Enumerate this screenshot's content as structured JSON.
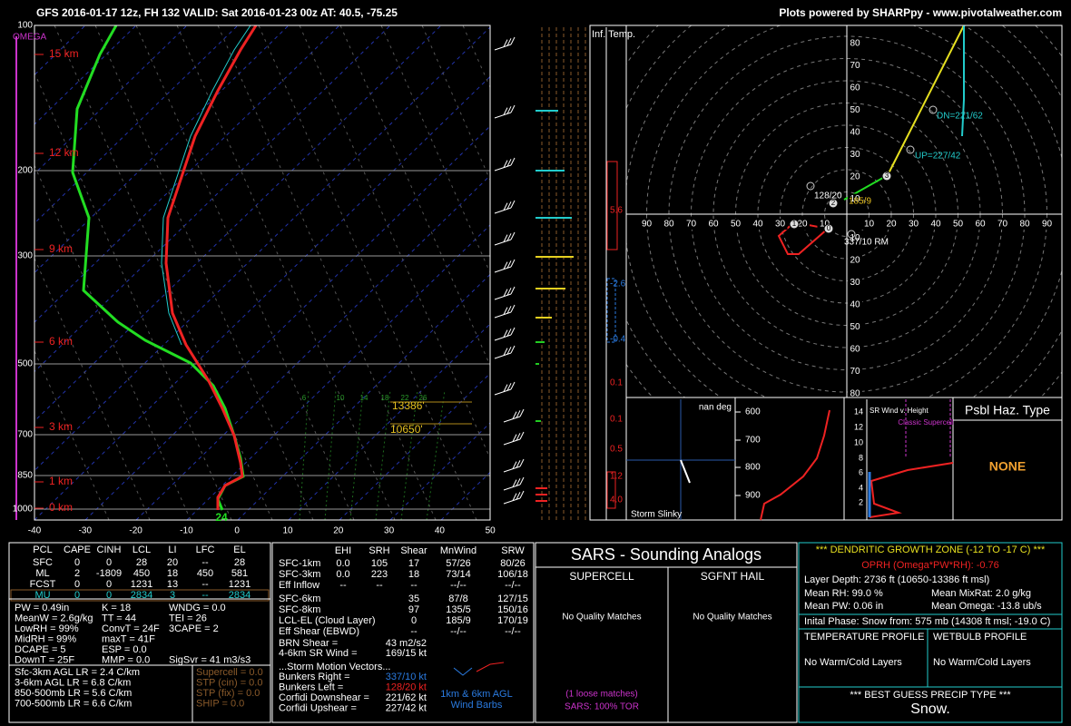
{
  "header": {
    "title": "GFS 2016-01-17 12z, FH 132   VALID: Sat 2016-01-23 00z   AT: 40.5, -75.25",
    "credit": "Plots powered by SHARPpy - www.pivotalweather.com"
  },
  "skewt": {
    "omega_label": "OMEGA",
    "pressure_labels": [
      "100",
      "200",
      "300",
      "500",
      "700",
      "850",
      "1000"
    ],
    "height_labels": [
      "15 km",
      "12 km",
      "9 km",
      "6 km",
      "3 km",
      "1 km",
      "0 km"
    ],
    "temp_labels": [
      "-40",
      "-30",
      "-20",
      "-10",
      "0",
      "10",
      "20",
      "30",
      "40",
      "50"
    ],
    "mixing_ratio_labels": [
      "6",
      "10",
      "14",
      "18",
      "22",
      "26"
    ],
    "dgz_top": "13386'",
    "dgz_bottom": "10650'",
    "sfc_label": "24"
  },
  "inferred_temp": {
    "label": "Inf. Temp.",
    "values": [
      "5.6",
      "-2.6",
      "-0.4",
      "0.1",
      "0.1",
      "0.5",
      "1.2",
      "4.0"
    ]
  },
  "hodograph": {
    "up_labels": [
      "80",
      "70",
      "60",
      "50",
      "40",
      "30",
      "20",
      "10"
    ],
    "down_labels": [
      "10",
      "20",
      "30",
      "40",
      "50",
      "60",
      "70",
      "80"
    ],
    "left_labels": [
      "90",
      "80",
      "70",
      "60",
      "50",
      "40",
      "30",
      "20",
      "10"
    ],
    "right_labels": [
      "10",
      "20",
      "30",
      "40",
      "50",
      "60",
      "70",
      "80",
      "90"
    ],
    "markers": [
      "1",
      "0",
      "2",
      "3"
    ],
    "dn": "DN=221/62",
    "up": "UP=227/42",
    "left_mover": "128/20",
    "cloud_layer": "185/9",
    "right_mover": "337/10 RM"
  },
  "slinky": {
    "title": "nan deg",
    "label": "Storm Slinky"
  },
  "theta_panel": {
    "labels": [
      "600",
      "700",
      "800",
      "900"
    ]
  },
  "sr_wind": {
    "title": "SR Wind v. Height",
    "annotation": "Classic Supercell",
    "labels": [
      "14",
      "12",
      "10",
      "8",
      "6",
      "4",
      "2"
    ]
  },
  "hazard": {
    "title": "Psbl Haz. Type",
    "value": "NONE"
  },
  "thermo": {
    "columns": [
      "PCL",
      "CAPE",
      "CINH",
      "LCL",
      "LI",
      "LFC",
      "EL"
    ],
    "rows": [
      [
        "SFC",
        "0",
        "0",
        "28",
        "20",
        "--",
        "28"
      ],
      [
        "ML",
        "2",
        "-1809",
        "450",
        "18",
        "450",
        "581"
      ],
      [
        "FCST",
        "0",
        "0",
        "1231",
        "13",
        "--",
        "1231"
      ],
      [
        "MU",
        "0",
        "0",
        "2834",
        "3",
        "--",
        "2834"
      ]
    ],
    "indices_a": [
      "PW = 0.49in",
      "MeanW = 2.6g/kg",
      "LowRH = 99%",
      "MidRH = 99%",
      "DCAPE = 5",
      "DownT = 25F"
    ],
    "indices_b": [
      "K = 18",
      "TT = 44",
      "ConvT = 24F",
      "maxT = 41F",
      "ESP = 0.0",
      "MMP = 0.0"
    ],
    "indices_c": [
      "WNDG = 0.0",
      "TEI = 26",
      "3CAPE = 2",
      "SigSvr = 41 m3/s3"
    ],
    "lapse_rates": [
      "Sfc-3km AGL LR = 2.4 C/km",
      "3-6km AGL LR = 6.8 C/km",
      "850-500mb LR = 5.6 C/km",
      "700-500mb LR = 6.6 C/km"
    ],
    "composites": [
      "Supercell = 0.0",
      "STP (cin) = 0.0",
      "STP (fix) = 0.0",
      "SHIP = 0.0"
    ]
  },
  "kinematics": {
    "columns": [
      "EHI",
      "SRH",
      "Shear",
      "MnWind",
      "SRW"
    ],
    "rows": [
      [
        "SFC-1km",
        "0.0",
        "105",
        "17",
        "57/26",
        "80/26"
      ],
      [
        "SFC-3km",
        "0.0",
        "223",
        "18",
        "73/14",
        "106/18"
      ],
      [
        "Eff Inflow",
        "--",
        "--",
        "--",
        "--/--",
        "--/--"
      ],
      [
        "SFC-6km",
        null,
        null,
        "35",
        "87/8",
        "127/15"
      ],
      [
        "SFC-8km",
        null,
        null,
        "97",
        "135/5",
        "150/16"
      ],
      [
        "LCL-EL (Cloud Layer)",
        null,
        null,
        "0",
        "185/9",
        "170/19"
      ],
      [
        "Eff Shear (EBWD)",
        null,
        null,
        "--",
        "--/--",
        "--/--"
      ]
    ],
    "brn_label": "BRN Shear =",
    "brn": "43 m2/s2",
    "sr46_label": "4-6km SR Wind =",
    "sr46": "169/15 kt",
    "vectors_title": "...Storm Motion Vectors...",
    "vectors": [
      [
        "Bunkers Right =",
        "337/10 kt"
      ],
      [
        "Bunkers Left =",
        "128/20 kt"
      ],
      [
        "Corfidi Downshear =",
        "221/62 kt"
      ],
      [
        "Corfidi Upshear =",
        "227/42 kt"
      ]
    ],
    "barbs_caption": [
      "1km & 6km AGL",
      "Wind Barbs"
    ]
  },
  "sars": {
    "title": "SARS - Sounding Analogs",
    "supercell": "SUPERCELL",
    "hail": "SGFNT HAIL",
    "supercell_result": "No Quality Matches",
    "hail_result": "No Quality Matches",
    "loose": "(1 loose matches)",
    "tor": "SARS: 100% TOR"
  },
  "winter": {
    "dgz": "*** DENDRITIC GROWTH ZONE (-12 TO -17 C) ***",
    "oprh": "OPRH (Omega*PW*RH): -0.76",
    "depth": "Layer Depth: 2736 ft (10650-13386 ft msl)",
    "mean_rh": "Mean RH: 99.0 %",
    "mean_mixrat": "Mean MixRat: 2.0 g/kg",
    "mean_pw": "Mean PW: 0.06 in",
    "mean_omega": "Mean Omega: -13.8 ub/s",
    "phase": "Inital Phase: Snow from: 575 mb (14308 ft msl; -19.0 C)",
    "temp_profile": "TEMPERATURE PROFILE",
    "wetbulb_profile": "WETBULB PROFILE",
    "temp_result": "No Warm/Cold Layers",
    "wetbulb_result": "No Warm/Cold Layers",
    "precip_title": "*** BEST GUESS PRECIP TYPE ***",
    "precip": "Snow."
  }
}
